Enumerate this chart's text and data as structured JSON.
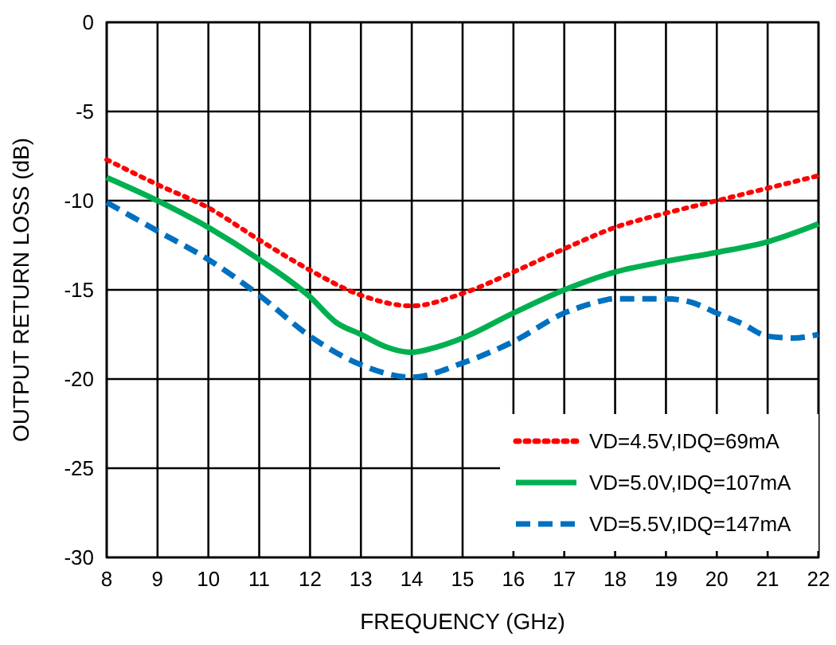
{
  "chart_data": {
    "type": "line",
    "xlabel": "FREQUENCY (GHz)",
    "ylabel": "OUTPUT RETURN LOSS (dB)",
    "xlim": [
      8,
      22
    ],
    "xticks": [
      8,
      9,
      10,
      11,
      12,
      13,
      14,
      15,
      16,
      17,
      18,
      19,
      20,
      21,
      22
    ],
    "ylim": [
      -30,
      0
    ],
    "yticks": [
      -30,
      -25,
      -20,
      -15,
      -10,
      -5,
      0
    ],
    "grid": true,
    "legend": "bottom right",
    "series": [
      {
        "name": "VD=4.5V,IDQ=69mA",
        "color": "#ff0000",
        "line_style": "dotted",
        "x": [
          8,
          9,
          10,
          11,
          12,
          13,
          14,
          15,
          16,
          17,
          18,
          19,
          20,
          21,
          22
        ],
        "values": [
          -7.7,
          -9.1,
          -10.4,
          -12.2,
          -13.9,
          -15.3,
          -15.9,
          -15.2,
          -14.0,
          -12.7,
          -11.5,
          -10.7,
          -10.0,
          -9.3,
          -8.6
        ]
      },
      {
        "name": "VD=5.0V,IDQ=107mA",
        "color": "#00b050",
        "line_style": "solid",
        "x": [
          8,
          9,
          10,
          11,
          12,
          12.5,
          13,
          13.5,
          14,
          14.5,
          15,
          16,
          17,
          18,
          19,
          20,
          21,
          22
        ],
        "values": [
          -8.7,
          -10.0,
          -11.5,
          -13.3,
          -15.4,
          -16.8,
          -17.5,
          -18.2,
          -18.5,
          -18.2,
          -17.7,
          -16.3,
          -15.0,
          -14.0,
          -13.4,
          -12.9,
          -12.3,
          -11.3
        ]
      },
      {
        "name": "VD=5.5V,IDQ=147mA",
        "color": "#0070c0",
        "line_style": "dashed",
        "x": [
          8,
          9,
          10,
          11,
          12,
          13,
          14,
          15,
          16,
          17,
          17.5,
          18,
          19,
          19.5,
          20,
          20.5,
          21,
          21.5,
          22
        ],
        "values": [
          -10.1,
          -11.7,
          -13.3,
          -15.3,
          -17.6,
          -19.2,
          -19.9,
          -19.1,
          -17.9,
          -16.3,
          -15.8,
          -15.5,
          -15.5,
          -15.7,
          -16.3,
          -16.9,
          -17.6,
          -17.7,
          -17.5
        ]
      }
    ]
  }
}
